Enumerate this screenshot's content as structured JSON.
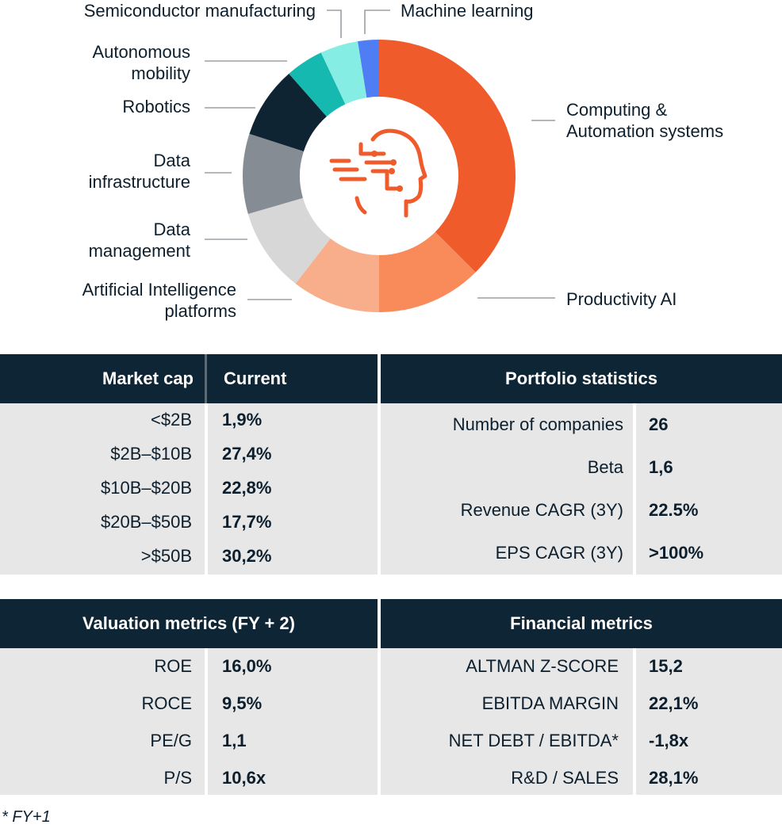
{
  "chart_data": {
    "type": "pie",
    "variant": "donut",
    "title": "",
    "slices": [
      {
        "label": "Computing & Automation systems",
        "lines": [
          "Computing &",
          "Automation systems"
        ],
        "value": 37.5,
        "color": "#ef5b2b"
      },
      {
        "label": "Productivity AI",
        "lines": [
          "Productivity AI"
        ],
        "value": 12.5,
        "color": "#f98a5a"
      },
      {
        "label": "Artificial Intelligence platforms",
        "lines": [
          "Artificial Intelligence",
          "platforms"
        ],
        "value": 10.5,
        "color": "#f8ad8b"
      },
      {
        "label": "Data management",
        "lines": [
          "Data",
          "management"
        ],
        "value": 10.0,
        "color": "#d7d7d7"
      },
      {
        "label": "Data infrastructure",
        "lines": [
          "Data",
          "infrastructure"
        ],
        "value": 9.5,
        "color": "#868c93"
      },
      {
        "label": "Robotics",
        "lines": [
          "Robotics"
        ],
        "value": 8.5,
        "color": "#0f2433"
      },
      {
        "label": "Autonomous mobility",
        "lines": [
          "Autonomous",
          "mobility"
        ],
        "value": 4.5,
        "color": "#15b9b0"
      },
      {
        "label": "Semiconductor manufacturing",
        "lines": [
          "Semiconductor manufacturing"
        ],
        "value": 4.5,
        "color": "#86ede4"
      },
      {
        "label": "Machine learning",
        "lines": [
          "Machine learning"
        ],
        "value": 2.5,
        "color": "#4f7df3"
      }
    ],
    "center_icon": "ai-head-icon",
    "accent_color": "#ef5b2b"
  },
  "market_cap": {
    "header_left": "Market cap",
    "header_right": "Current",
    "rows": [
      {
        "label": "<$2B",
        "value": "1,9%"
      },
      {
        "label": "$2B–$10B",
        "value": "27,4%"
      },
      {
        "label": "$10B–$20B",
        "value": "22,8%"
      },
      {
        "label": "$20B–$50B",
        "value": "17,7%"
      },
      {
        "label": ">$50B",
        "value": "30,2%"
      }
    ]
  },
  "portfolio": {
    "header": "Portfolio statistics",
    "rows": [
      {
        "label": "Number of companies",
        "value": "26"
      },
      {
        "label": "Beta",
        "value": "1,6"
      },
      {
        "label": "Revenue CAGR (3Y)",
        "value": "22.5%"
      },
      {
        "label": "EPS CAGR (3Y)",
        "value": ">100%"
      }
    ]
  },
  "valuation": {
    "header": "Valuation metrics (FY + 2)",
    "rows": [
      {
        "label": "ROE",
        "value": "16,0%"
      },
      {
        "label": "ROCE",
        "value": "9,5%"
      },
      {
        "label": "PE/G",
        "value": "1,1"
      },
      {
        "label": "P/S",
        "value": "10,6x"
      }
    ]
  },
  "financial": {
    "header": "Financial metrics",
    "rows": [
      {
        "label": "ALTMAN Z-SCORE",
        "value": "15,2"
      },
      {
        "label": "EBITDA MARGIN",
        "value": "22,1%"
      },
      {
        "label": "NET DEBT / EBITDA*",
        "value": "-1,8x"
      },
      {
        "label": "R&D / SALES",
        "value": "28,1%"
      }
    ]
  },
  "footnote": "* FY+1",
  "colors": {
    "header_bg": "#0e2535",
    "body_bg": "#e7e7e7",
    "leader": "#9aa0a6"
  }
}
